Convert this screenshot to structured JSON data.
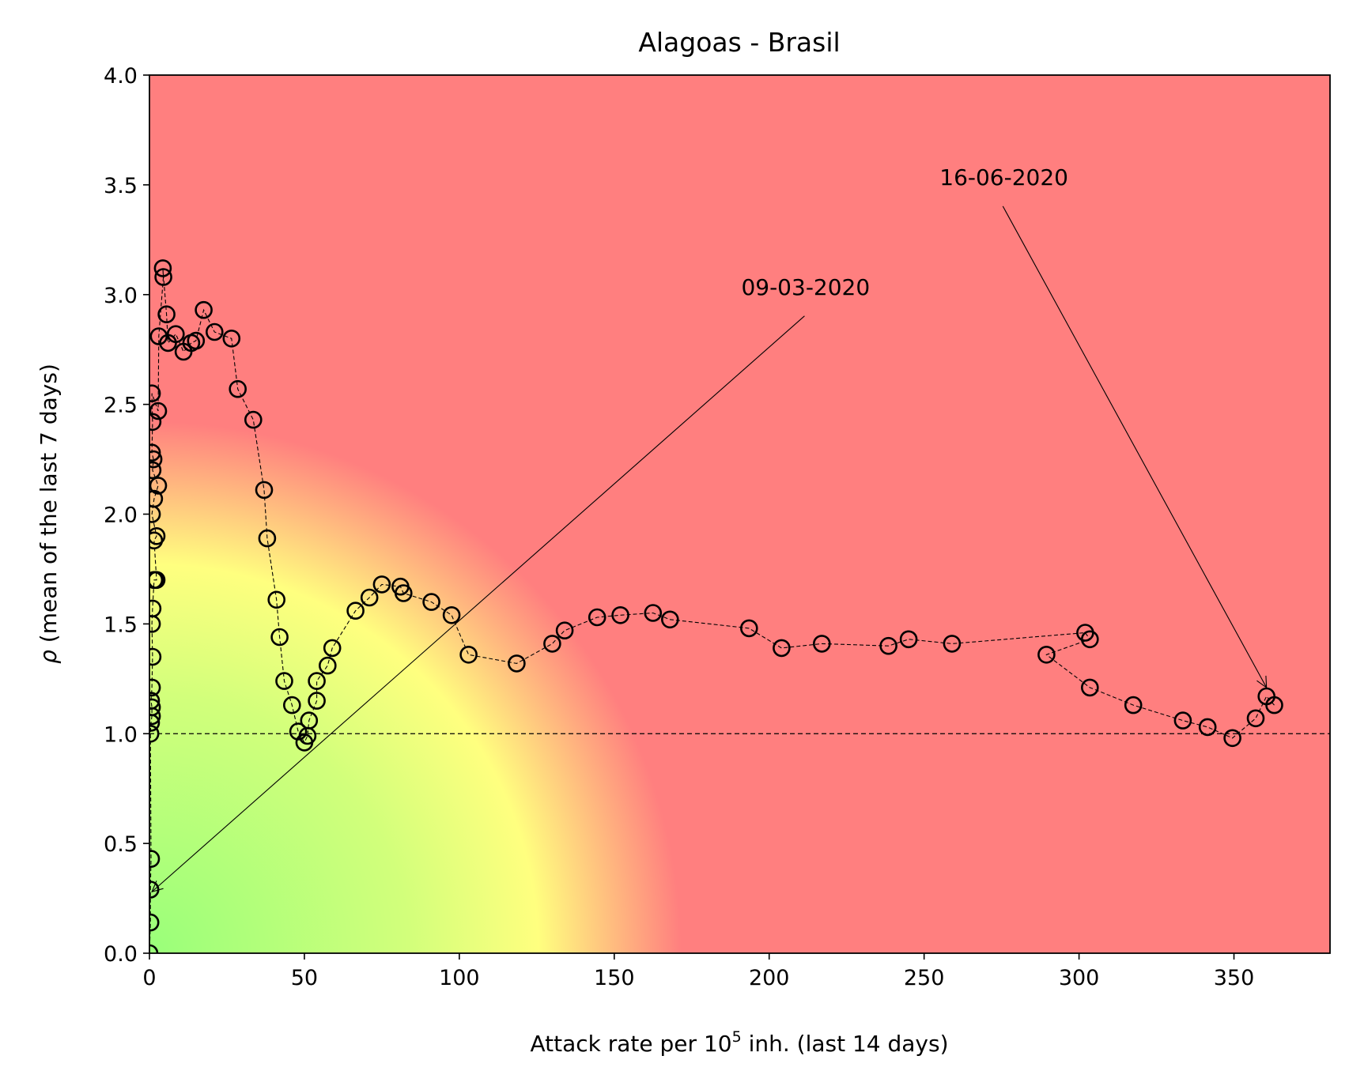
{
  "chart_data": {
    "type": "scatter",
    "title": "Alagoas - Brasil",
    "xlabel": "Attack rate per 10",
    "xlabel_superscript": "5",
    "xlabel_suffix": " inh. (last 14 days)",
    "ylabel_symbol": "ρ",
    "ylabel": " (mean of the last 7 days)",
    "xlim": [
      0,
      381
    ],
    "ylim": [
      0,
      4.0
    ],
    "x_ticks": [
      0,
      50,
      100,
      150,
      200,
      250,
      300,
      350
    ],
    "x_tick_labels": [
      "0",
      "50",
      "100",
      "150",
      "200",
      "250",
      "300",
      "350"
    ],
    "y_ticks": [
      0,
      0.5,
      1.0,
      1.5,
      2.0,
      2.5,
      3.0,
      3.5,
      4.0
    ],
    "y_tick_labels": [
      "0.0",
      "0.5",
      "1.0",
      "1.5",
      "2.0",
      "2.5",
      "3.0",
      "3.5",
      "4.0"
    ],
    "grid": false,
    "reference_line_y": 1.0,
    "background": {
      "type": "risk-gradient",
      "colors": {
        "low": "#99ff7a",
        "mid": "#ffff7f",
        "high": "#ff7f7f"
      }
    },
    "series": [
      {
        "marker": "open-circle",
        "line_style": "dashed",
        "color": "#000000",
        "points": [
          [
            0.0,
            0.0
          ],
          [
            0.3,
            0.14
          ],
          [
            0.3,
            0.29
          ],
          [
            0.5,
            0.43
          ],
          [
            0.3,
            1.0
          ],
          [
            0.5,
            1.05
          ],
          [
            0.8,
            1.08
          ],
          [
            0.8,
            1.12
          ],
          [
            0.5,
            1.15
          ],
          [
            0.8,
            1.21
          ],
          [
            1.0,
            1.35
          ],
          [
            0.8,
            1.5
          ],
          [
            1.0,
            1.57
          ],
          [
            1.5,
            1.7
          ],
          [
            2.0,
            1.7
          ],
          [
            2.3,
            1.7
          ],
          [
            1.5,
            1.88
          ],
          [
            2.3,
            1.9
          ],
          [
            0.8,
            2.0
          ],
          [
            1.5,
            2.07
          ],
          [
            2.8,
            2.13
          ],
          [
            1.0,
            2.2
          ],
          [
            1.3,
            2.25
          ],
          [
            0.8,
            2.28
          ],
          [
            1.0,
            2.42
          ],
          [
            0.8,
            2.55
          ],
          [
            2.8,
            2.47
          ],
          [
            3.0,
            2.81
          ],
          [
            4.5,
            3.08
          ],
          [
            4.3,
            3.12
          ],
          [
            5.5,
            2.91
          ],
          [
            6.0,
            2.78
          ],
          [
            8.5,
            2.82
          ],
          [
            11.0,
            2.74
          ],
          [
            13.5,
            2.78
          ],
          [
            15.0,
            2.79
          ],
          [
            17.5,
            2.93
          ],
          [
            21.0,
            2.83
          ],
          [
            26.5,
            2.8
          ],
          [
            28.5,
            2.57
          ],
          [
            33.5,
            2.43
          ],
          [
            37.0,
            2.11
          ],
          [
            38.0,
            1.89
          ],
          [
            41.0,
            1.61
          ],
          [
            42.0,
            1.44
          ],
          [
            43.5,
            1.24
          ],
          [
            46.0,
            1.13
          ],
          [
            48.0,
            1.01
          ],
          [
            50.0,
            0.96
          ],
          [
            51.0,
            0.99
          ],
          [
            51.5,
            1.06
          ],
          [
            54.0,
            1.15
          ],
          [
            54.0,
            1.24
          ],
          [
            57.5,
            1.31
          ],
          [
            59.0,
            1.39
          ],
          [
            66.5,
            1.56
          ],
          [
            71.0,
            1.62
          ],
          [
            75.0,
            1.68
          ],
          [
            81.0,
            1.67
          ],
          [
            82.0,
            1.64
          ],
          [
            91.0,
            1.6
          ],
          [
            97.5,
            1.54
          ],
          [
            103.0,
            1.36
          ],
          [
            118.5,
            1.32
          ],
          [
            130.0,
            1.41
          ],
          [
            134.0,
            1.47
          ],
          [
            144.5,
            1.53
          ],
          [
            152.0,
            1.54
          ],
          [
            162.5,
            1.55
          ],
          [
            168.0,
            1.52
          ],
          [
            193.5,
            1.48
          ],
          [
            204.0,
            1.39
          ],
          [
            217.0,
            1.41
          ],
          [
            238.5,
            1.4
          ],
          [
            245.0,
            1.43
          ],
          [
            259.0,
            1.41
          ],
          [
            302.0,
            1.46
          ],
          [
            303.5,
            1.43
          ],
          [
            289.5,
            1.36
          ],
          [
            303.5,
            1.21
          ],
          [
            317.5,
            1.13
          ],
          [
            333.5,
            1.06
          ],
          [
            341.5,
            1.03
          ],
          [
            349.5,
            0.98
          ],
          [
            357.0,
            1.07
          ],
          [
            360.5,
            1.17
          ],
          [
            363.0,
            1.13
          ]
        ]
      }
    ],
    "annotations": [
      {
        "text": "09-03-2020",
        "point": [
          0.8,
          0.28
        ],
        "text_position": [
          191,
          3.0
        ]
      },
      {
        "text": "16-06-2020",
        "point": [
          360.5,
          1.21
        ],
        "text_position": [
          255,
          3.5
        ]
      }
    ]
  }
}
